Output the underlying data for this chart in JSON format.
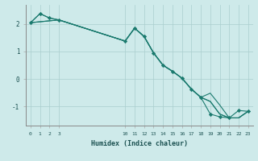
{
  "xlabel": "Humidex (Indice chaleur)",
  "bg_color": "#ceeaea",
  "line_color": "#1a7a6e",
  "grid_color": "#aacece",
  "xlim": [
    -0.5,
    23.5
  ],
  "ylim": [
    -1.7,
    2.7
  ],
  "yticks": [
    -1,
    0,
    1,
    2
  ],
  "xticks": [
    0,
    1,
    2,
    3,
    10,
    11,
    12,
    13,
    14,
    15,
    16,
    17,
    18,
    19,
    20,
    21,
    22,
    23
  ],
  "line1_x": [
    0,
    1,
    2,
    3,
    10,
    11,
    12,
    13,
    14,
    15,
    16,
    17,
    18,
    19,
    20,
    21,
    22,
    23
  ],
  "line1_y": [
    2.05,
    2.38,
    2.22,
    2.15,
    1.38,
    1.85,
    1.55,
    0.95,
    0.5,
    0.28,
    0.03,
    -0.37,
    -0.67,
    -1.28,
    -1.38,
    -1.42,
    -1.15,
    -1.18
  ],
  "line2_x": [
    0,
    1,
    2,
    3,
    10,
    11,
    12,
    13,
    14,
    15,
    16,
    17,
    18,
    19,
    20,
    21,
    22,
    23
  ],
  "line2_y": [
    2.05,
    2.38,
    2.22,
    2.15,
    1.38,
    1.85,
    1.55,
    0.95,
    0.5,
    0.28,
    0.03,
    -0.37,
    -0.67,
    -0.82,
    -1.28,
    -1.42,
    -1.42,
    -1.18
  ],
  "line3_x": [
    0,
    3,
    10,
    11,
    12,
    13,
    14,
    15,
    16,
    17,
    18,
    19,
    20,
    21,
    22,
    23
  ],
  "line3_y": [
    2.05,
    2.15,
    1.38,
    1.85,
    1.55,
    0.95,
    0.5,
    0.28,
    0.03,
    -0.37,
    -0.67,
    -0.82,
    -1.28,
    -1.42,
    -1.42,
    -1.18
  ],
  "line4_x": [
    0,
    3,
    10,
    11,
    12,
    13,
    14,
    15,
    16,
    17,
    18,
    19,
    20,
    21,
    22,
    23
  ],
  "line4_y": [
    2.05,
    2.15,
    1.38,
    1.85,
    1.55,
    0.95,
    0.5,
    0.28,
    0.03,
    -0.37,
    -0.67,
    -0.52,
    -0.95,
    -1.42,
    -1.42,
    -1.18
  ]
}
